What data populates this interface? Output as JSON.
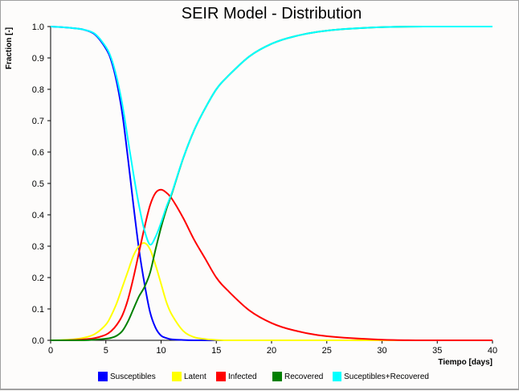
{
  "chart_data": {
    "type": "line",
    "title": "SEIR Model - Distribution",
    "xlabel": "Tiempo [days]",
    "ylabel": "Fraction [-]",
    "xlim": [
      0,
      40
    ],
    "ylim": [
      0,
      1.0
    ],
    "xticks": [
      "0",
      "5",
      "10",
      "15",
      "20",
      "25",
      "30",
      "35",
      "40"
    ],
    "yticks": [
      "0.0",
      "0.1",
      "0.2",
      "0.3",
      "0.4",
      "0.5",
      "0.6",
      "0.7",
      "0.8",
      "0.9",
      "1.0"
    ],
    "grid": false,
    "legend_position": "bottom",
    "x": [
      0,
      1,
      2,
      3,
      4,
      5,
      5.5,
      6,
      6.5,
      7,
      7.5,
      8,
      8.5,
      9,
      9.5,
      10,
      10.5,
      11,
      12,
      13,
      14,
      15,
      16,
      18,
      20,
      22,
      25,
      30,
      35,
      40
    ],
    "series": [
      {
        "name": "Susceptibles",
        "color": "#0000ff",
        "values": [
          1,
          0.998,
          0.995,
          0.99,
          0.975,
          0.93,
          0.89,
          0.82,
          0.72,
          0.58,
          0.43,
          0.29,
          0.18,
          0.09,
          0.04,
          0.015,
          0.007,
          0.003,
          0.001,
          0,
          0,
          0,
          0,
          0,
          0,
          0,
          0,
          0,
          0,
          0
        ]
      },
      {
        "name": "Latent",
        "color": "#ffff00",
        "values": [
          0,
          0.001,
          0.003,
          0.008,
          0.02,
          0.05,
          0.08,
          0.12,
          0.17,
          0.22,
          0.27,
          0.3,
          0.31,
          0.29,
          0.24,
          0.18,
          0.12,
          0.08,
          0.03,
          0.01,
          0.004,
          0.001,
          0,
          0,
          0,
          0,
          0,
          0,
          0,
          0
        ]
      },
      {
        "name": "Infected",
        "color": "#ff0000",
        "values": [
          0,
          0,
          0.001,
          0.003,
          0.007,
          0.018,
          0.03,
          0.05,
          0.08,
          0.13,
          0.2,
          0.28,
          0.36,
          0.43,
          0.47,
          0.48,
          0.47,
          0.45,
          0.39,
          0.32,
          0.26,
          0.2,
          0.16,
          0.095,
          0.055,
          0.032,
          0.013,
          0.002,
          0,
          0
        ]
      },
      {
        "name": "Recovered",
        "color": "#008000",
        "values": [
          0,
          0,
          0,
          0,
          0.002,
          0.005,
          0.008,
          0.015,
          0.03,
          0.06,
          0.1,
          0.14,
          0.17,
          0.215,
          0.29,
          0.36,
          0.42,
          0.47,
          0.58,
          0.67,
          0.74,
          0.8,
          0.84,
          0.905,
          0.945,
          0.968,
          0.987,
          0.998,
          1,
          1
        ]
      },
      {
        "name": "Suceptibles+Recovered",
        "color": "#00ffff",
        "values": [
          1,
          0.998,
          0.995,
          0.99,
          0.977,
          0.935,
          0.898,
          0.835,
          0.75,
          0.64,
          0.53,
          0.43,
          0.35,
          0.305,
          0.33,
          0.375,
          0.427,
          0.473,
          0.581,
          0.67,
          0.74,
          0.8,
          0.84,
          0.905,
          0.945,
          0.968,
          0.987,
          0.998,
          1,
          1
        ]
      }
    ]
  }
}
